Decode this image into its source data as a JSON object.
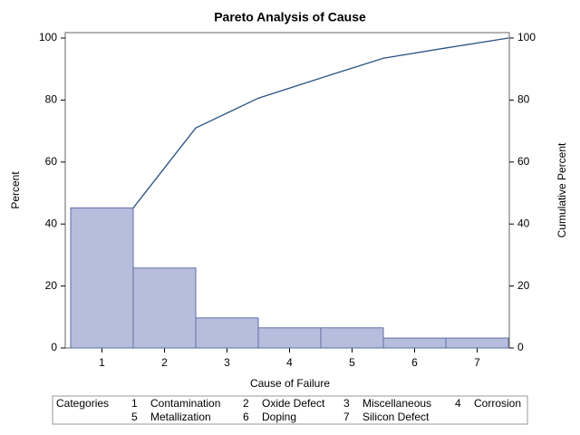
{
  "chart_data": {
    "type": "pareto",
    "title": "Pareto Analysis of Cause",
    "x_label": "Cause of Failure",
    "y_label": "Percent",
    "y2_label": "Cumulative Percent",
    "categories": [
      "1",
      "2",
      "3",
      "4",
      "5",
      "6",
      "7"
    ],
    "series": [
      {
        "values": [
          45.2,
          25.8,
          9.7,
          6.5,
          6.5,
          3.2,
          3.2
        ],
        "color": "#b7bedd"
      },
      {
        "values": [
          45.2,
          71.0,
          80.6,
          87.1,
          93.5,
          96.8,
          100
        ],
        "color": "#2a5384",
        "axis": "y2"
      }
    ],
    "ylim": [
      0,
      100
    ],
    "yticks": [
      0,
      20,
      40,
      60,
      80,
      100
    ],
    "y2lim": [
      0,
      100
    ],
    "y2ticks": [
      0,
      20,
      40,
      60,
      80,
      100
    ],
    "legend_title": "Categories",
    "category_names": [
      "Contamination",
      "Oxide Defect",
      "Miscellaneous",
      "Corrosion",
      "Metallization",
      "Doping",
      "Silicon Defect"
    ]
  }
}
